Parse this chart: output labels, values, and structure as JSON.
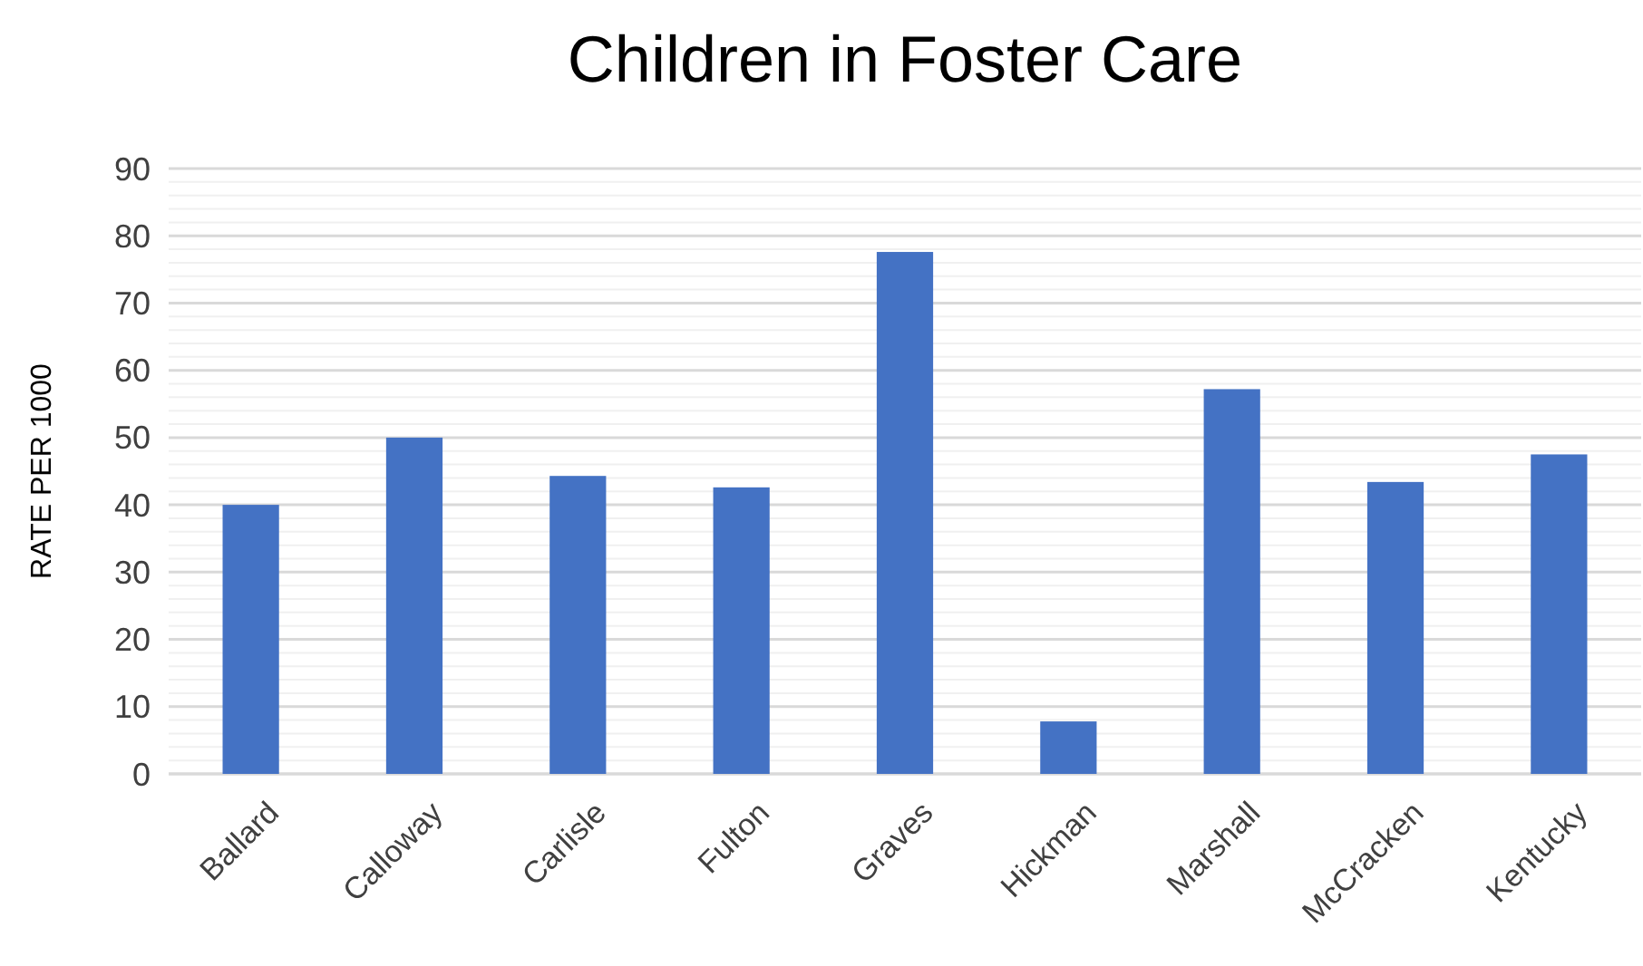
{
  "chart_data": {
    "type": "bar",
    "title": "Children in Foster Care",
    "ylabel": "RATE PER 1000",
    "categories": [
      "Ballard",
      "Calloway",
      "Carlisle",
      "Fulton",
      "Graves",
      "Hickman",
      "Marshall",
      "McCracken",
      "Kentucky"
    ],
    "values": [
      40,
      50,
      44.3,
      42.6,
      77.6,
      7.8,
      57.2,
      43.4,
      47.5
    ],
    "color": "#4472c4",
    "ylim": [
      0,
      90
    ],
    "yticks": [
      0,
      {
        "value": 2,
        "label": null
      },
      {
        "value": 4,
        "label": null
      },
      {
        "value": 6,
        "label": null
      },
      {
        "value": 8,
        "label": null
      },
      10,
      {
        "value": 12,
        "label": null
      },
      {
        "value": 14,
        "label": null
      },
      {
        "value": 16,
        "label": null
      },
      {
        "value": 18,
        "label": null
      },
      20,
      {
        "value": 22,
        "label": null
      },
      {
        "value": 24,
        "label": null
      },
      {
        "value": 26,
        "label": null
      },
      {
        "value": 28,
        "label": null
      },
      30,
      {
        "value": 32,
        "label": null
      },
      {
        "value": 34,
        "label": null
      },
      {
        "value": 36,
        "label": null
      },
      {
        "value": 38,
        "label": null
      },
      40,
      {
        "value": 42,
        "label": null
      },
      {
        "value": 44,
        "label": null
      },
      {
        "value": 46,
        "label": null
      },
      {
        "value": 48,
        "label": null
      },
      50,
      {
        "value": 52,
        "label": null
      },
      {
        "value": 54,
        "label": null
      },
      {
        "value": 56,
        "label": null
      },
      {
        "value": 58,
        "label": null
      },
      60,
      {
        "value": 62,
        "label": null
      },
      {
        "value": 64,
        "label": null
      },
      {
        "value": 66,
        "label": null
      },
      {
        "value": 68,
        "label": null
      },
      70,
      {
        "value": 72,
        "label": null
      },
      {
        "value": 74,
        "label": null
      },
      {
        "value": 76,
        "label": null
      },
      {
        "value": 78,
        "label": null
      },
      80,
      {
        "value": 82,
        "label": null
      },
      {
        "value": 84,
        "label": null
      },
      {
        "value": 86,
        "label": null
      },
      {
        "value": 88,
        "label": null
      },
      90
    ],
    "grid": "y"
  }
}
